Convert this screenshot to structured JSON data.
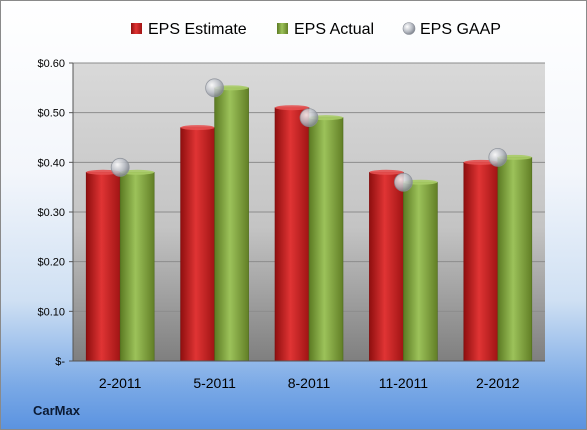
{
  "brand": "CarMax",
  "chart_data": {
    "type": "bar",
    "categories": [
      "2-2011",
      "5-2011",
      "8-2011",
      "11-2011",
      "2-2012"
    ],
    "series": [
      {
        "name": "EPS Estimate",
        "kind": "bar",
        "color": "#cc1f1f",
        "values": [
          0.38,
          0.47,
          0.51,
          0.38,
          0.4
        ]
      },
      {
        "name": "EPS Actual",
        "kind": "bar",
        "color": "#7fa33a",
        "values": [
          0.38,
          0.55,
          0.49,
          0.36,
          0.41
        ]
      },
      {
        "name": "EPS GAAP",
        "kind": "marker",
        "color": "#b8bcc4",
        "values": [
          0.39,
          0.55,
          0.49,
          0.36,
          0.41
        ]
      }
    ],
    "ylim": [
      0,
      0.6
    ],
    "yticks": [
      0,
      0.1,
      0.2,
      0.3,
      0.4,
      0.5,
      0.6
    ],
    "ytick_labels": [
      "$-",
      "$0.10",
      "$0.20",
      "$0.30",
      "$0.40",
      "$0.50",
      "$0.60"
    ],
    "grid": true,
    "legend_position": "top"
  }
}
